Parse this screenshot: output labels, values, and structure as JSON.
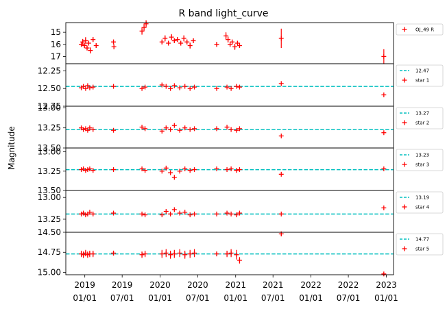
{
  "chart_data": {
    "type": "scatter",
    "title": "R band light_curve",
    "ylabel": "Magnitude",
    "x_ticks": [
      {
        "date": "2019-01-01",
        "label": [
          "2019",
          "01/01"
        ]
      },
      {
        "date": "2019-07-01",
        "label": [
          "2019",
          "07/01"
        ]
      },
      {
        "date": "2020-01-01",
        "label": [
          "2020",
          "01/01"
        ]
      },
      {
        "date": "2020-07-01",
        "label": [
          "2020",
          "07/01"
        ]
      },
      {
        "date": "2021-01-01",
        "label": [
          "2021",
          "01/01"
        ]
      },
      {
        "date": "2021-07-01",
        "label": [
          "2021",
          "07/01"
        ]
      },
      {
        "date": "2022-01-01",
        "label": [
          "2022",
          "01/01"
        ]
      },
      {
        "date": "2022-07-01",
        "label": [
          "2022",
          "07/01"
        ]
      },
      {
        "date": "2023-01-01",
        "label": [
          "2023",
          "01/01"
        ]
      }
    ],
    "xlim": [
      "2018-10-01",
      "2023-02-05"
    ],
    "marker_color": "#ff0000",
    "reference_color": "#00bfbf",
    "panels": [
      {
        "name": "OJ_49 R",
        "ylim": [
          17.6,
          14.2
        ],
        "yticks": [
          15,
          16,
          17
        ],
        "ytick_labels": [
          "15",
          "16",
          "17"
        ],
        "legend": [
          "OJ_49 R"
        ],
        "points": [
          {
            "x": "2018-12-15",
            "y": 16.0,
            "err": 0.2
          },
          {
            "x": "2018-12-22",
            "y": 15.8,
            "err": 0.25
          },
          {
            "x": "2018-12-30",
            "y": 16.1,
            "err": 0.2
          },
          {
            "x": "2019-01-05",
            "y": 15.7,
            "err": 0.3
          },
          {
            "x": "2019-01-12",
            "y": 16.3,
            "err": 0.2
          },
          {
            "x": "2019-01-20",
            "y": 15.9,
            "err": 0.2
          },
          {
            "x": "2019-01-28",
            "y": 16.5,
            "err": 0.25
          },
          {
            "x": "2019-02-10",
            "y": 15.6,
            "err": 0.2
          },
          {
            "x": "2019-02-25",
            "y": 16.1,
            "err": 0.2
          },
          {
            "x": "2019-05-20",
            "y": 15.8,
            "err": 0.2
          },
          {
            "x": "2019-05-22",
            "y": 16.2,
            "err": 0.2
          },
          {
            "x": "2019-10-05",
            "y": 14.9,
            "err": 0.3
          },
          {
            "x": "2019-10-15",
            "y": 14.6,
            "err": 0.3
          },
          {
            "x": "2019-10-25",
            "y": 14.3,
            "err": 0.3
          },
          {
            "x": "2020-01-10",
            "y": 15.8,
            "err": 0.2
          },
          {
            "x": "2020-01-25",
            "y": 15.5,
            "err": 0.25
          },
          {
            "x": "2020-02-10",
            "y": 15.9,
            "err": 0.2
          },
          {
            "x": "2020-02-25",
            "y": 15.4,
            "err": 0.25
          },
          {
            "x": "2020-03-10",
            "y": 15.7,
            "err": 0.2
          },
          {
            "x": "2020-03-25",
            "y": 15.6,
            "err": 0.2
          },
          {
            "x": "2020-04-10",
            "y": 15.9,
            "err": 0.2
          },
          {
            "x": "2020-04-25",
            "y": 15.5,
            "err": 0.25
          },
          {
            "x": "2020-05-10",
            "y": 15.8,
            "err": 0.2
          },
          {
            "x": "2020-05-25",
            "y": 16.1,
            "err": 0.25
          },
          {
            "x": "2020-06-10",
            "y": 15.7,
            "err": 0.2
          },
          {
            "x": "2020-10-01",
            "y": 16.0,
            "err": 0.2
          },
          {
            "x": "2020-11-15",
            "y": 15.3,
            "err": 0.3
          },
          {
            "x": "2020-11-25",
            "y": 15.6,
            "err": 0.25
          },
          {
            "x": "2020-12-05",
            "y": 16.0,
            "err": 0.2
          },
          {
            "x": "2020-12-15",
            "y": 15.8,
            "err": 0.2
          },
          {
            "x": "2020-12-28",
            "y": 16.2,
            "err": 0.25
          },
          {
            "x": "2021-01-10",
            "y": 15.9,
            "err": 0.2
          },
          {
            "x": "2021-01-20",
            "y": 16.1,
            "err": 0.2
          },
          {
            "x": "2021-08-10",
            "y": 15.5,
            "err": 0.8
          },
          {
            "x": "2022-12-20",
            "y": 17.0,
            "err": 0.6
          }
        ]
      },
      {
        "name": "star 1",
        "reference": 12.47,
        "ylim": [
          12.75,
          12.15
        ],
        "yticks": [
          12.25,
          12.5,
          12.75
        ],
        "ytick_labels": [
          "12.25",
          "12.50",
          "12.75"
        ],
        "legend": [
          "12.47",
          "star 1"
        ],
        "points": [
          {
            "x": "2018-12-15",
            "y": 12.49
          },
          {
            "x": "2018-12-25",
            "y": 12.47
          },
          {
            "x": "2019-01-05",
            "y": 12.5
          },
          {
            "x": "2019-01-15",
            "y": 12.46
          },
          {
            "x": "2019-01-25",
            "y": 12.49
          },
          {
            "x": "2019-02-10",
            "y": 12.48
          },
          {
            "x": "2019-05-20",
            "y": 12.47
          },
          {
            "x": "2019-10-05",
            "y": 12.5
          },
          {
            "x": "2019-10-20",
            "y": 12.48
          },
          {
            "x": "2020-01-10",
            "y": 12.45
          },
          {
            "x": "2020-01-30",
            "y": 12.47
          },
          {
            "x": "2020-02-20",
            "y": 12.5
          },
          {
            "x": "2020-03-10",
            "y": 12.46
          },
          {
            "x": "2020-04-05",
            "y": 12.49
          },
          {
            "x": "2020-04-30",
            "y": 12.47
          },
          {
            "x": "2020-05-25",
            "y": 12.5
          },
          {
            "x": "2020-06-15",
            "y": 12.48
          },
          {
            "x": "2020-10-01",
            "y": 12.5
          },
          {
            "x": "2020-11-20",
            "y": 12.48
          },
          {
            "x": "2020-12-10",
            "y": 12.5
          },
          {
            "x": "2021-01-05",
            "y": 12.47
          },
          {
            "x": "2021-01-20",
            "y": 12.48
          },
          {
            "x": "2021-08-10",
            "y": 12.43
          },
          {
            "x": "2022-12-20",
            "y": 12.59
          }
        ]
      },
      {
        "name": "star 2",
        "reference": 13.27,
        "ylim": [
          13.5,
          12.98
        ],
        "yticks": [
          13.0,
          13.25,
          13.5
        ],
        "ytick_labels": [
          "13.00",
          "13.25",
          "13.50"
        ],
        "legend": [
          "13.27",
          "star 2"
        ],
        "points": [
          {
            "x": "2018-12-15",
            "y": 13.25
          },
          {
            "x": "2018-12-25",
            "y": 13.27
          },
          {
            "x": "2019-01-05",
            "y": 13.26
          },
          {
            "x": "2019-01-15",
            "y": 13.28
          },
          {
            "x": "2019-01-25",
            "y": 13.25
          },
          {
            "x": "2019-02-10",
            "y": 13.27
          },
          {
            "x": "2019-05-20",
            "y": 13.28
          },
          {
            "x": "2019-10-05",
            "y": 13.24
          },
          {
            "x": "2019-10-20",
            "y": 13.26
          },
          {
            "x": "2020-01-10",
            "y": 13.29
          },
          {
            "x": "2020-01-30",
            "y": 13.25
          },
          {
            "x": "2020-02-20",
            "y": 13.27
          },
          {
            "x": "2020-03-10",
            "y": 13.22
          },
          {
            "x": "2020-04-05",
            "y": 13.28
          },
          {
            "x": "2020-04-30",
            "y": 13.25
          },
          {
            "x": "2020-05-25",
            "y": 13.27
          },
          {
            "x": "2020-06-15",
            "y": 13.26
          },
          {
            "x": "2020-10-01",
            "y": 13.26
          },
          {
            "x": "2020-11-20",
            "y": 13.24
          },
          {
            "x": "2020-12-10",
            "y": 13.27
          },
          {
            "x": "2021-01-05",
            "y": 13.28
          },
          {
            "x": "2021-01-20",
            "y": 13.26
          },
          {
            "x": "2021-08-10",
            "y": 13.35
          },
          {
            "x": "2022-12-20",
            "y": 13.31
          }
        ]
      },
      {
        "name": "star 3",
        "reference": 13.23,
        "ylim": [
          13.5,
          12.95
        ],
        "yticks": [
          13.0,
          13.25,
          13.5
        ],
        "ytick_labels": [
          "13.00",
          "13.25",
          "13.50"
        ],
        "legend": [
          "13.23",
          "star 3"
        ],
        "points": [
          {
            "x": "2018-12-15",
            "y": 13.23
          },
          {
            "x": "2018-12-25",
            "y": 13.22
          },
          {
            "x": "2019-01-05",
            "y": 13.24
          },
          {
            "x": "2019-01-15",
            "y": 13.23
          },
          {
            "x": "2019-01-25",
            "y": 13.22
          },
          {
            "x": "2019-02-10",
            "y": 13.24
          },
          {
            "x": "2019-05-20",
            "y": 13.23
          },
          {
            "x": "2019-10-05",
            "y": 13.22
          },
          {
            "x": "2019-10-20",
            "y": 13.24
          },
          {
            "x": "2020-01-10",
            "y": 13.25
          },
          {
            "x": "2020-01-30",
            "y": 13.21
          },
          {
            "x": "2020-02-20",
            "y": 13.27
          },
          {
            "x": "2020-03-10",
            "y": 13.33
          },
          {
            "x": "2020-04-05",
            "y": 13.25
          },
          {
            "x": "2020-04-30",
            "y": 13.22
          },
          {
            "x": "2020-05-25",
            "y": 13.24
          },
          {
            "x": "2020-06-15",
            "y": 13.23
          },
          {
            "x": "2020-10-01",
            "y": 13.22
          },
          {
            "x": "2020-11-20",
            "y": 13.23
          },
          {
            "x": "2020-12-10",
            "y": 13.22
          },
          {
            "x": "2021-01-05",
            "y": 13.24
          },
          {
            "x": "2021-01-20",
            "y": 13.23
          },
          {
            "x": "2021-08-10",
            "y": 13.29
          },
          {
            "x": "2022-12-20",
            "y": 13.22
          }
        ]
      },
      {
        "name": "star 4",
        "reference": 13.19,
        "ylim": [
          13.4,
          12.92
        ],
        "yticks": [
          13.0,
          13.25
        ],
        "ytick_labels": [
          "13.00",
          "13.25"
        ],
        "legend": [
          "13.19",
          "star 4"
        ],
        "points": [
          {
            "x": "2018-12-15",
            "y": 13.19
          },
          {
            "x": "2018-12-25",
            "y": 13.18
          },
          {
            "x": "2019-01-05",
            "y": 13.2
          },
          {
            "x": "2019-01-15",
            "y": 13.19
          },
          {
            "x": "2019-01-25",
            "y": 13.17
          },
          {
            "x": "2019-02-10",
            "y": 13.19
          },
          {
            "x": "2019-05-20",
            "y": 13.18
          },
          {
            "x": "2019-10-05",
            "y": 13.19
          },
          {
            "x": "2019-10-20",
            "y": 13.2
          },
          {
            "x": "2020-01-10",
            "y": 13.2
          },
          {
            "x": "2020-01-30",
            "y": 13.16
          },
          {
            "x": "2020-02-20",
            "y": 13.19
          },
          {
            "x": "2020-03-10",
            "y": 13.14
          },
          {
            "x": "2020-04-05",
            "y": 13.18
          },
          {
            "x": "2020-04-30",
            "y": 13.17
          },
          {
            "x": "2020-05-25",
            "y": 13.2
          },
          {
            "x": "2020-06-15",
            "y": 13.19
          },
          {
            "x": "2020-10-01",
            "y": 13.19
          },
          {
            "x": "2020-11-20",
            "y": 13.18
          },
          {
            "x": "2020-12-10",
            "y": 13.19
          },
          {
            "x": "2021-01-05",
            "y": 13.2
          },
          {
            "x": "2021-01-20",
            "y": 13.18
          },
          {
            "x": "2021-08-10",
            "y": 13.19
          },
          {
            "x": "2022-12-20",
            "y": 13.12
          }
        ]
      },
      {
        "name": "star 5",
        "reference": 14.77,
        "ylim": [
          15.03,
          14.5
        ],
        "yticks": [
          14.5,
          14.75,
          15.0
        ],
        "ytick_labels": [
          "14.50",
          "14.75",
          "15.00"
        ],
        "legend": [
          "14.77",
          "star 5"
        ],
        "points": [
          {
            "x": "2018-12-15",
            "y": 14.77,
            "err": 0.04
          },
          {
            "x": "2018-12-25",
            "y": 14.78,
            "err": 0.04
          },
          {
            "x": "2019-01-05",
            "y": 14.76,
            "err": 0.04
          },
          {
            "x": "2019-01-15",
            "y": 14.78,
            "err": 0.04
          },
          {
            "x": "2019-01-25",
            "y": 14.77,
            "err": 0.04
          },
          {
            "x": "2019-02-10",
            "y": 14.77,
            "err": 0.04
          },
          {
            "x": "2019-05-20",
            "y": 14.76,
            "err": 0.03
          },
          {
            "x": "2019-10-05",
            "y": 14.78,
            "err": 0.04
          },
          {
            "x": "2019-10-20",
            "y": 14.77,
            "err": 0.04
          },
          {
            "x": "2020-01-10",
            "y": 14.77,
            "err": 0.05
          },
          {
            "x": "2020-01-30",
            "y": 14.76,
            "err": 0.05
          },
          {
            "x": "2020-02-20",
            "y": 14.78,
            "err": 0.05
          },
          {
            "x": "2020-03-10",
            "y": 14.77,
            "err": 0.05
          },
          {
            "x": "2020-04-05",
            "y": 14.76,
            "err": 0.05
          },
          {
            "x": "2020-04-30",
            "y": 14.78,
            "err": 0.05
          },
          {
            "x": "2020-05-25",
            "y": 14.77,
            "err": 0.05
          },
          {
            "x": "2020-06-15",
            "y": 14.76,
            "err": 0.05
          },
          {
            "x": "2020-10-01",
            "y": 14.77,
            "err": 0.03
          },
          {
            "x": "2020-11-20",
            "y": 14.77,
            "err": 0.04
          },
          {
            "x": "2020-12-10",
            "y": 14.76,
            "err": 0.05
          },
          {
            "x": "2021-01-05",
            "y": 14.78,
            "err": 0.06
          },
          {
            "x": "2021-01-20",
            "y": 14.85,
            "err": 0.04
          },
          {
            "x": "2021-08-10",
            "y": 14.52,
            "err": 0.03
          },
          {
            "x": "2022-12-20",
            "y": 15.02,
            "err": 0.02
          }
        ]
      }
    ]
  }
}
